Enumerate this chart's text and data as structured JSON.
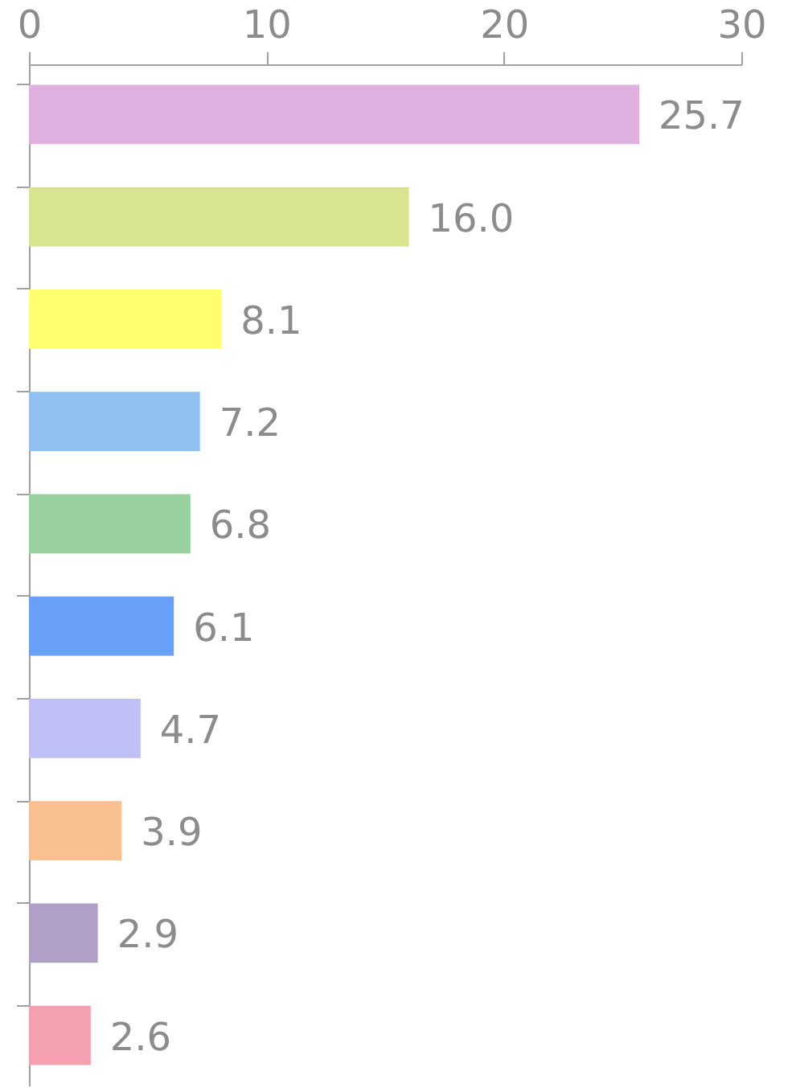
{
  "chart_data": {
    "type": "bar",
    "orientation": "horizontal",
    "categories": [
      null,
      null,
      null,
      null,
      null,
      null,
      null,
      null,
      null,
      null
    ],
    "values": [
      25.7,
      16.0,
      8.1,
      7.2,
      6.8,
      6.1,
      4.7,
      3.9,
      2.9,
      2.6
    ],
    "value_labels": [
      "25.7",
      "16.0",
      "8.1",
      "7.2",
      "6.8",
      "6.1",
      "4.7",
      "3.9",
      "2.9",
      "2.6"
    ],
    "colors": [
      "#e0b0e0",
      "#d8e490",
      "#ffff70",
      "#90c0f0",
      "#98d0a0",
      "#68a0f8",
      "#c0c0f8",
      "#f8c090",
      "#b0a0c8",
      "#f4a0b0"
    ],
    "xlim": [
      0,
      30
    ],
    "xticks": [
      0,
      10,
      20,
      30
    ],
    "grid": false
  }
}
